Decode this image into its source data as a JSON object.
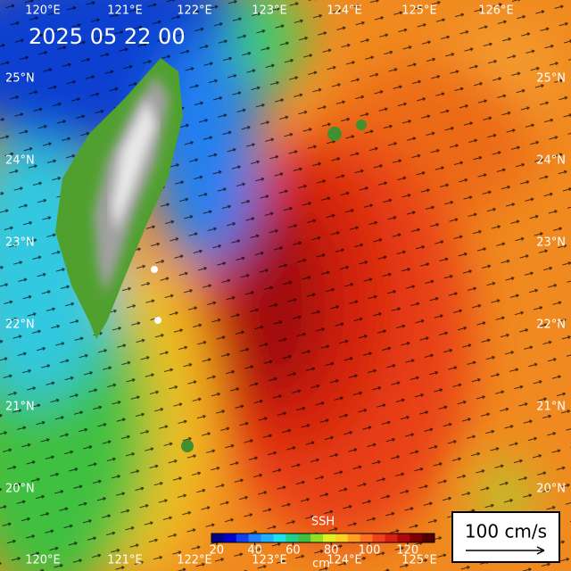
{
  "map": {
    "title": "2025 05 22 00",
    "top_longitudes": [
      "120°E",
      "121°E",
      "122°E",
      "123°E",
      "124°E",
      "125°E",
      "126°E"
    ],
    "bottom_longitudes": [
      "120°E",
      "121°E",
      "122°E",
      "123°E",
      "124°E",
      "125°E"
    ],
    "left_latitudes": [
      "25°N",
      "24°N",
      "23°N",
      "22°N",
      "21°N",
      "20°N"
    ],
    "right_latitudes": [
      "25°N",
      "24°N",
      "23°N",
      "22°N",
      "21°N",
      "20°N"
    ],
    "colorbar": {
      "label": "SSH",
      "ticks": [
        20,
        40,
        60,
        80,
        100,
        120
      ],
      "unit": "cm"
    },
    "scale": {
      "label": "100 cm/s"
    }
  }
}
